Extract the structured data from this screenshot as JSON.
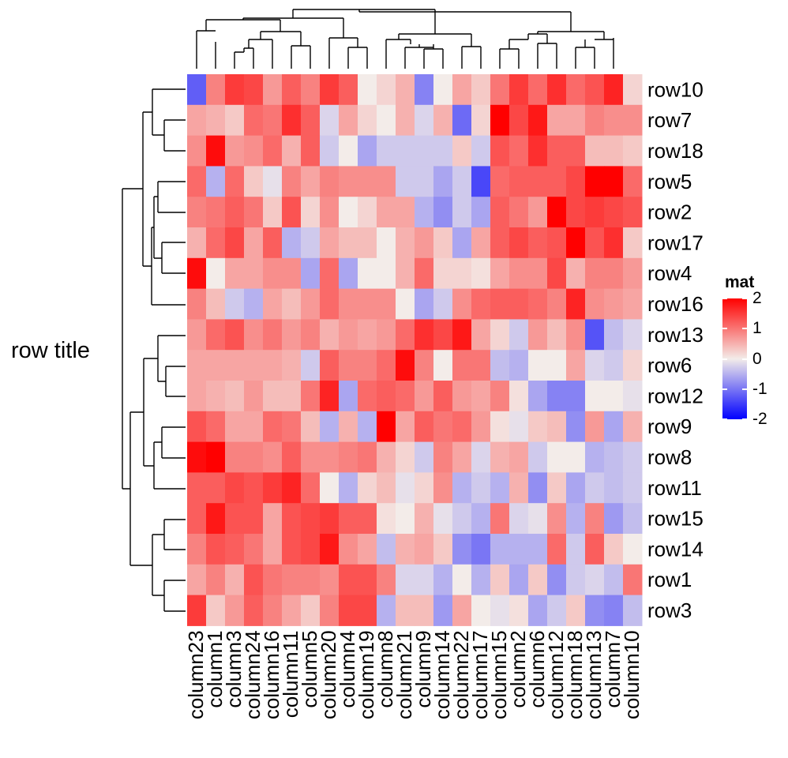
{
  "chart_data": {
    "type": "heatmap",
    "row_title": "row title",
    "rows": [
      "row10",
      "row7",
      "row18",
      "row5",
      "row2",
      "row17",
      "row4",
      "row16",
      "row13",
      "row6",
      "row12",
      "row9",
      "row8",
      "row11",
      "row15",
      "row14",
      "row1",
      "row3"
    ],
    "columns": [
      "column23",
      "column1",
      "column3",
      "column24",
      "column16",
      "column11",
      "column5",
      "column20",
      "column4",
      "column19",
      "column8",
      "column21",
      "column9",
      "column14",
      "column22",
      "column17",
      "column15",
      "column2",
      "column6",
      "column12",
      "column18",
      "column13",
      "column7",
      "column10"
    ],
    "values": [
      [
        -1.2,
        0.9,
        1.5,
        1.4,
        0.7,
        1.2,
        0.9,
        1.5,
        1.2,
        0.0,
        0.2,
        0.5,
        -0.9,
        0.0,
        0.6,
        0.3,
        1.0,
        1.5,
        1.1,
        1.6,
        1.1,
        1.3,
        1.7,
        0.2
      ],
      [
        0.6,
        0.5,
        0.3,
        1.1,
        1.0,
        1.6,
        1.2,
        -0.2,
        0.6,
        0.2,
        0.0,
        0.5,
        -0.2,
        0.5,
        -1.1,
        0.2,
        2.0,
        1.4,
        1.8,
        0.6,
        0.6,
        0.9,
        0.8,
        0.8
      ],
      [
        0.8,
        1.9,
        0.7,
        0.8,
        1.1,
        0.5,
        1.2,
        -0.3,
        0.0,
        -0.6,
        -0.3,
        -0.3,
        -0.3,
        -0.3,
        0.3,
        -0.3,
        1.3,
        1.1,
        1.6,
        1.2,
        1.2,
        0.4,
        0.4,
        0.3
      ],
      [
        1.1,
        -0.5,
        1.1,
        0.3,
        -0.1,
        0.9,
        0.6,
        0.9,
        0.8,
        0.8,
        0.8,
        -0.3,
        -0.3,
        -0.6,
        -0.3,
        -1.4,
        1.1,
        1.2,
        1.2,
        1.2,
        1.4,
        2.2,
        2.2,
        1.1
      ],
      [
        0.9,
        1.0,
        1.2,
        1.0,
        0.3,
        1.3,
        0.2,
        0.8,
        0.0,
        0.2,
        0.6,
        0.6,
        -0.5,
        -0.8,
        -0.3,
        -0.6,
        1.2,
        1.0,
        0.7,
        2.0,
        1.4,
        1.5,
        1.4,
        1.3
      ],
      [
        0.5,
        1.1,
        1.4,
        0.6,
        1.2,
        -0.5,
        -0.3,
        0.6,
        0.4,
        0.4,
        0.0,
        0.5,
        0.7,
        0.3,
        -0.6,
        0.6,
        1.2,
        1.4,
        1.2,
        1.3,
        2.2,
        1.3,
        1.6,
        0.3
      ],
      [
        1.9,
        0.0,
        0.6,
        0.6,
        0.8,
        0.8,
        -0.6,
        1.1,
        -0.6,
        0.0,
        0.0,
        0.5,
        1.1,
        0.2,
        0.2,
        0.1,
        0.6,
        0.8,
        0.8,
        1.4,
        0.5,
        0.9,
        0.9,
        0.7
      ],
      [
        0.9,
        0.4,
        -0.3,
        -0.5,
        0.6,
        0.4,
        0.7,
        1.1,
        0.8,
        0.8,
        0.8,
        0.0,
        -0.6,
        -0.3,
        0.8,
        1.1,
        1.2,
        1.2,
        1.1,
        0.9,
        1.7,
        0.8,
        0.7,
        0.6
      ],
      [
        0.7,
        1.1,
        1.3,
        0.8,
        1.0,
        0.7,
        0.9,
        0.5,
        0.7,
        0.6,
        0.7,
        1.1,
        1.6,
        1.4,
        1.8,
        0.6,
        0.2,
        -0.3,
        0.7,
        0.4,
        0.8,
        -1.3,
        -0.4,
        -0.2
      ],
      [
        0.6,
        0.6,
        0.6,
        0.6,
        0.6,
        0.5,
        -0.3,
        1.2,
        0.9,
        0.9,
        1.1,
        1.9,
        0.9,
        0.0,
        1.0,
        1.0,
        -0.4,
        -0.5,
        0.0,
        0.0,
        0.6,
        -0.2,
        -0.3,
        0.2
      ],
      [
        0.6,
        0.5,
        0.4,
        0.7,
        0.4,
        0.4,
        1.0,
        1.7,
        -0.6,
        1.1,
        1.2,
        1.1,
        0.7,
        1.2,
        0.7,
        0.6,
        0.9,
        0.1,
        -0.6,
        -0.9,
        -0.9,
        0.0,
        0.0,
        -0.1
      ],
      [
        1.3,
        1.1,
        0.6,
        0.6,
        1.1,
        1.0,
        0.4,
        -0.5,
        0.5,
        -0.5,
        2.0,
        0.6,
        1.2,
        1.0,
        1.1,
        0.7,
        0.1,
        -0.1,
        0.3,
        0.4,
        -0.8,
        0.7,
        -0.6,
        0.5
      ],
      [
        1.9,
        2.1,
        0.9,
        0.9,
        0.8,
        1.2,
        0.8,
        0.8,
        0.9,
        1.0,
        0.5,
        0.2,
        -0.3,
        0.9,
        0.6,
        -0.2,
        0.5,
        0.6,
        -0.3,
        0.0,
        0.0,
        -0.5,
        -0.4,
        -0.3
      ],
      [
        1.2,
        1.2,
        1.4,
        1.3,
        1.5,
        1.7,
        1.1,
        0.0,
        -0.5,
        0.2,
        0.4,
        -0.1,
        0.2,
        0.8,
        -0.5,
        -0.3,
        -0.5,
        0.5,
        -0.8,
        0.3,
        -0.6,
        -0.3,
        -0.4,
        -0.3
      ],
      [
        1.2,
        1.8,
        1.3,
        1.3,
        0.6,
        1.3,
        1.4,
        1.5,
        1.2,
        1.2,
        0.1,
        0.0,
        0.5,
        -0.1,
        -0.3,
        -0.5,
        1.0,
        -0.2,
        -0.1,
        0.8,
        -0.5,
        0.9,
        -0.7,
        -0.4
      ],
      [
        0.9,
        1.3,
        1.2,
        1.0,
        0.6,
        1.3,
        1.4,
        1.8,
        0.8,
        0.6,
        -0.4,
        0.5,
        0.6,
        0.3,
        -0.8,
        -1.0,
        -0.5,
        -0.5,
        -0.5,
        1.1,
        -0.3,
        1.2,
        0.3,
        0.0
      ],
      [
        0.6,
        0.9,
        0.5,
        1.3,
        1.0,
        0.9,
        0.9,
        0.8,
        1.3,
        1.3,
        0.9,
        -0.2,
        -0.2,
        -0.5,
        0.0,
        -0.5,
        0.3,
        -0.6,
        0.3,
        -0.8,
        -0.3,
        -0.2,
        -0.4,
        1.0
      ],
      [
        1.5,
        0.3,
        0.7,
        1.2,
        0.9,
        0.6,
        0.3,
        0.9,
        1.4,
        1.4,
        -0.5,
        0.4,
        0.4,
        -0.7,
        0.6,
        0.0,
        -0.1,
        0.1,
        -0.6,
        -0.3,
        0.3,
        -0.8,
        -0.9,
        -0.4
      ]
    ],
    "color_scale": {
      "min": -2,
      "mid": 0,
      "max": 2,
      "low_color": "#0000ff",
      "mid_color": "#f3ece9",
      "high_color": "#ff0000"
    },
    "legend": {
      "title": "mat",
      "ticks": [
        2,
        1,
        0,
        -1,
        -2
      ],
      "tick_labels": [
        "2",
        "1",
        "0",
        "-1",
        "-2"
      ],
      "placement": "right"
    },
    "row_dendrogram": true,
    "column_dendrogram": true
  }
}
